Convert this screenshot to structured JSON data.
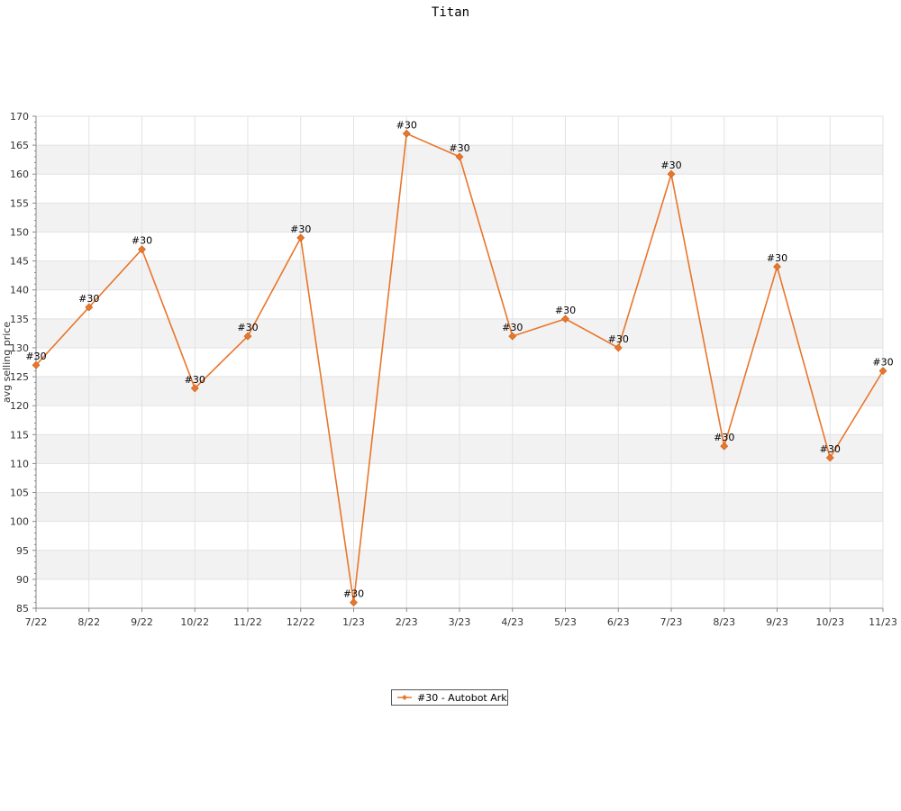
{
  "chart_data": {
    "type": "line",
    "title": "Titan",
    "xlabel": "",
    "ylabel": "avg selling price",
    "categories": [
      "7/22",
      "8/22",
      "9/22",
      "10/22",
      "11/22",
      "12/22",
      "1/23",
      "2/23",
      "3/23",
      "4/23",
      "5/23",
      "6/23",
      "7/23",
      "8/23",
      "9/23",
      "10/23",
      "11/23"
    ],
    "series": [
      {
        "name": "#30 - Autobot Ark",
        "color": "#e8762b",
        "values": [
          127,
          137,
          147,
          123,
          132,
          149,
          86,
          167,
          163,
          132,
          135,
          130,
          160,
          113,
          144,
          111,
          126
        ],
        "point_labels": [
          "#30",
          "#30",
          "#30",
          "#30",
          "#30",
          "#30",
          "#30",
          "#30",
          "#30",
          "#30",
          "#30",
          "#30",
          "#30",
          "#30",
          "#30",
          "#30",
          "#30"
        ]
      }
    ],
    "ylim": [
      85,
      170
    ],
    "yticks": [
      85,
      90,
      95,
      100,
      105,
      110,
      115,
      120,
      125,
      130,
      135,
      140,
      145,
      150,
      155,
      160,
      165,
      170
    ],
    "grid": true,
    "alternating_bands": true,
    "legend_position": "bottom-center"
  }
}
